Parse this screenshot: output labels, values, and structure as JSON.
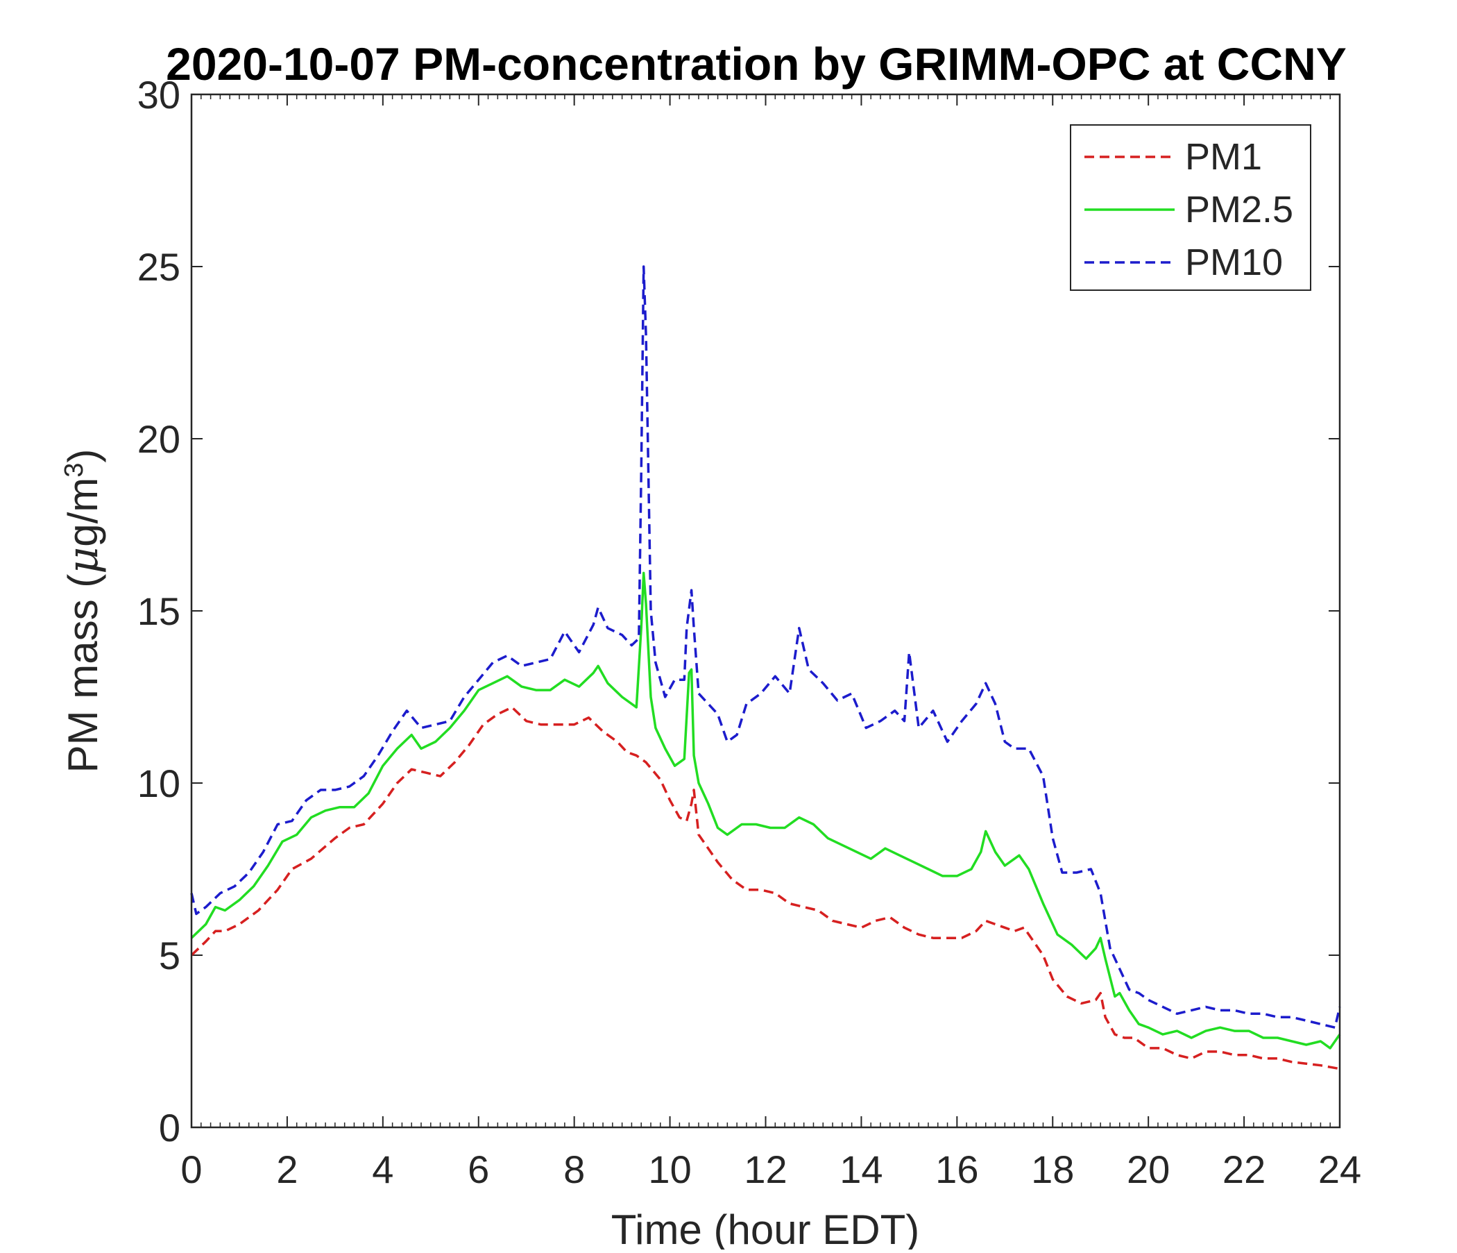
{
  "chart_data": {
    "type": "line",
    "title": "2020-10-07 PM-concentration by GRIMM-OPC at CCNY",
    "xlabel": "Time (hour EDT)",
    "ylabel_prefix": "PM mass (",
    "ylabel_mu": "μ",
    "ylabel_unit": "g/m",
    "ylabel_sup": "3",
    "ylabel_suffix": ")",
    "xlim": [
      0,
      24
    ],
    "ylim": [
      0,
      30
    ],
    "xticks": [
      0,
      2,
      4,
      6,
      8,
      10,
      12,
      14,
      16,
      18,
      20,
      22,
      24
    ],
    "yticks": [
      0,
      5,
      10,
      15,
      20,
      25,
      30
    ],
    "grid": false,
    "legend_position": "top-right",
    "series": [
      {
        "name": "PM1",
        "color": "#d62020",
        "style": "dashed",
        "x": [
          0,
          0.3,
          0.5,
          0.7,
          1.0,
          1.4,
          1.8,
          2.1,
          2.5,
          3.0,
          3.3,
          3.6,
          4.0,
          4.3,
          4.6,
          4.9,
          5.2,
          5.5,
          5.8,
          6.1,
          6.4,
          6.7,
          7.0,
          7.3,
          7.6,
          8.0,
          8.3,
          8.6,
          8.9,
          9.1,
          9.3,
          9.5,
          9.8,
          10.0,
          10.2,
          10.35,
          10.45,
          10.5,
          10.6,
          10.8,
          11.0,
          11.3,
          11.6,
          11.9,
          12.2,
          12.5,
          12.8,
          13.1,
          13.4,
          13.7,
          14.0,
          14.3,
          14.6,
          14.9,
          15.2,
          15.5,
          15.8,
          16.1,
          16.4,
          16.6,
          16.8,
          17.0,
          17.2,
          17.4,
          17.6,
          17.8,
          18.0,
          18.3,
          18.6,
          18.9,
          19.0,
          19.1,
          19.3,
          19.5,
          19.7,
          20.0,
          20.3,
          20.6,
          20.9,
          21.2,
          21.5,
          21.8,
          22.1,
          22.4,
          22.7,
          23.0,
          23.3,
          23.6,
          23.8,
          24.0
        ],
        "values": [
          5.0,
          5.4,
          5.7,
          5.7,
          5.9,
          6.3,
          6.9,
          7.5,
          7.8,
          8.4,
          8.7,
          8.8,
          9.4,
          10.0,
          10.4,
          10.3,
          10.2,
          10.6,
          11.1,
          11.7,
          12.0,
          12.2,
          11.8,
          11.7,
          11.7,
          11.7,
          11.9,
          11.5,
          11.2,
          10.9,
          10.8,
          10.6,
          10.1,
          9.5,
          9.0,
          8.9,
          9.4,
          9.8,
          8.5,
          8.1,
          7.7,
          7.2,
          6.9,
          6.9,
          6.8,
          6.5,
          6.4,
          6.3,
          6.0,
          5.9,
          5.8,
          6.0,
          6.1,
          5.8,
          5.6,
          5.5,
          5.5,
          5.5,
          5.7,
          6.0,
          5.9,
          5.8,
          5.7,
          5.8,
          5.4,
          5.0,
          4.3,
          3.8,
          3.6,
          3.7,
          3.9,
          3.2,
          2.7,
          2.6,
          2.6,
          2.3,
          2.3,
          2.1,
          2.0,
          2.2,
          2.2,
          2.1,
          2.1,
          2.0,
          2.0,
          1.9,
          1.85,
          1.8,
          1.75,
          1.7
        ]
      },
      {
        "name": "PM2.5",
        "color": "#22dd22",
        "style": "solid",
        "x": [
          0,
          0.3,
          0.5,
          0.7,
          1.0,
          1.3,
          1.6,
          1.9,
          2.2,
          2.5,
          2.8,
          3.1,
          3.4,
          3.7,
          4.0,
          4.3,
          4.6,
          4.8,
          5.1,
          5.4,
          5.7,
          6.0,
          6.3,
          6.6,
          6.9,
          7.2,
          7.5,
          7.8,
          8.1,
          8.4,
          8.5,
          8.7,
          9.0,
          9.3,
          9.4,
          9.45,
          9.5,
          9.6,
          9.7,
          9.9,
          10.1,
          10.3,
          10.4,
          10.45,
          10.5,
          10.6,
          10.8,
          11.0,
          11.2,
          11.5,
          11.8,
          12.1,
          12.4,
          12.7,
          13.0,
          13.3,
          13.6,
          13.9,
          14.2,
          14.5,
          14.8,
          15.1,
          15.4,
          15.7,
          16.0,
          16.3,
          16.5,
          16.6,
          16.8,
          17.0,
          17.3,
          17.5,
          17.8,
          18.1,
          18.4,
          18.7,
          18.9,
          19.0,
          19.1,
          19.3,
          19.4,
          19.6,
          19.8,
          20.0,
          20.3,
          20.6,
          20.9,
          21.2,
          21.5,
          21.8,
          22.1,
          22.4,
          22.7,
          23.0,
          23.3,
          23.6,
          23.8,
          24.0
        ],
        "values": [
          5.5,
          5.9,
          6.4,
          6.3,
          6.6,
          7.0,
          7.6,
          8.3,
          8.5,
          9.0,
          9.2,
          9.3,
          9.3,
          9.7,
          10.5,
          11.0,
          11.4,
          11.0,
          11.2,
          11.6,
          12.1,
          12.7,
          12.9,
          13.1,
          12.8,
          12.7,
          12.7,
          13.0,
          12.8,
          13.2,
          13.4,
          12.9,
          12.5,
          12.2,
          14.5,
          16.1,
          15.2,
          12.5,
          11.6,
          11.0,
          10.5,
          10.7,
          13.2,
          13.3,
          10.8,
          10.0,
          9.4,
          8.7,
          8.5,
          8.8,
          8.8,
          8.7,
          8.7,
          9.0,
          8.8,
          8.4,
          8.2,
          8.0,
          7.8,
          8.1,
          7.9,
          7.7,
          7.5,
          7.3,
          7.3,
          7.5,
          8.0,
          8.6,
          8.0,
          7.6,
          7.9,
          7.5,
          6.5,
          5.6,
          5.3,
          4.9,
          5.2,
          5.5,
          4.9,
          3.8,
          3.9,
          3.4,
          3.0,
          2.9,
          2.7,
          2.8,
          2.6,
          2.8,
          2.9,
          2.8,
          2.8,
          2.6,
          2.6,
          2.5,
          2.4,
          2.5,
          2.3,
          2.7
        ]
      },
      {
        "name": "PM10",
        "color": "#1c1ccc",
        "style": "dashed",
        "x": [
          0,
          0.1,
          0.3,
          0.6,
          0.9,
          1.2,
          1.5,
          1.8,
          2.1,
          2.4,
          2.7,
          3.0,
          3.3,
          3.6,
          3.9,
          4.2,
          4.5,
          4.8,
          5.1,
          5.4,
          5.7,
          6.0,
          6.3,
          6.6,
          6.9,
          7.2,
          7.5,
          7.8,
          8.1,
          8.4,
          8.5,
          8.7,
          9.0,
          9.2,
          9.35,
          9.4,
          9.45,
          9.5,
          9.6,
          9.7,
          9.9,
          10.1,
          10.3,
          10.35,
          10.45,
          10.5,
          10.6,
          10.8,
          11.0,
          11.2,
          11.4,
          11.6,
          11.9,
          12.2,
          12.5,
          12.7,
          12.9,
          13.2,
          13.5,
          13.8,
          14.1,
          14.4,
          14.7,
          14.9,
          15.0,
          15.2,
          15.5,
          15.8,
          16.1,
          16.4,
          16.6,
          16.8,
          17.0,
          17.2,
          17.5,
          17.8,
          18.0,
          18.2,
          18.5,
          18.8,
          19.0,
          19.1,
          19.2,
          19.4,
          19.6,
          19.8,
          20.0,
          20.3,
          20.6,
          20.9,
          21.2,
          21.5,
          21.8,
          22.1,
          22.4,
          22.7,
          23.0,
          23.3,
          23.6,
          23.9,
          24.0
        ],
        "values": [
          6.8,
          6.2,
          6.4,
          6.8,
          7.0,
          7.4,
          8.0,
          8.8,
          8.9,
          9.5,
          9.8,
          9.8,
          9.9,
          10.2,
          10.8,
          11.5,
          12.1,
          11.6,
          11.7,
          11.8,
          12.5,
          13.0,
          13.5,
          13.7,
          13.4,
          13.5,
          13.6,
          14.4,
          13.8,
          14.6,
          15.1,
          14.5,
          14.3,
          14.0,
          14.2,
          19.0,
          25.0,
          23.0,
          15.0,
          13.5,
          12.5,
          13.0,
          13.0,
          14.5,
          15.6,
          14.5,
          12.6,
          12.3,
          12.0,
          11.2,
          11.4,
          12.3,
          12.6,
          13.1,
          12.6,
          14.5,
          13.3,
          12.9,
          12.4,
          12.6,
          11.6,
          11.8,
          12.1,
          11.8,
          13.8,
          11.6,
          12.1,
          11.2,
          11.8,
          12.3,
          12.9,
          12.3,
          11.2,
          11.0,
          11.0,
          10.2,
          8.4,
          7.4,
          7.4,
          7.5,
          6.8,
          6.0,
          5.2,
          4.6,
          4.0,
          3.9,
          3.7,
          3.5,
          3.3,
          3.4,
          3.5,
          3.4,
          3.4,
          3.3,
          3.3,
          3.2,
          3.2,
          3.1,
          3.0,
          2.9,
          3.5
        ]
      }
    ]
  }
}
